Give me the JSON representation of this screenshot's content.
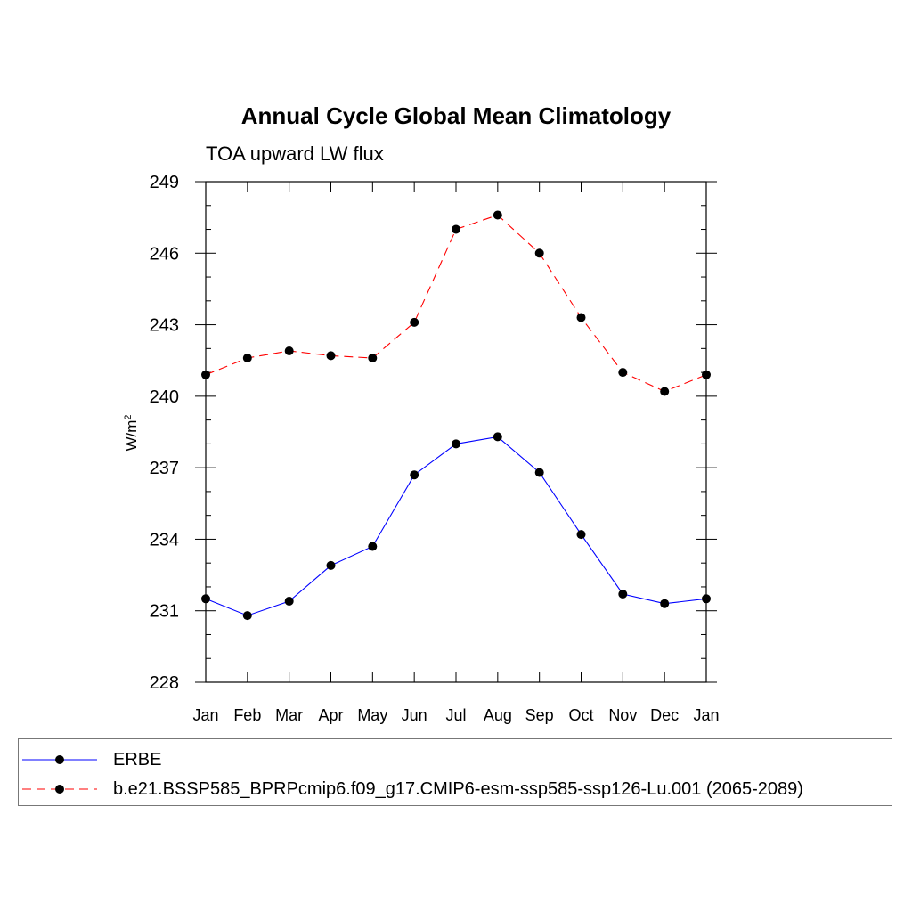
{
  "chart_data": {
    "type": "line",
    "title": "Annual Cycle Global Mean Climatology",
    "subtitle": "TOA upward LW flux",
    "ylabel": "W/m",
    "ylabel_superscript": "2",
    "ylim": [
      228,
      249
    ],
    "yticks": [
      228,
      231,
      234,
      237,
      240,
      243,
      246,
      249
    ],
    "categories": [
      "Jan",
      "Feb",
      "Mar",
      "Apr",
      "May",
      "Jun",
      "Jul",
      "Aug",
      "Sep",
      "Oct",
      "Nov",
      "Dec",
      "Jan"
    ],
    "series": [
      {
        "name": "ERBE",
        "color": "#0000ff",
        "dash": "solid",
        "values": [
          231.5,
          230.8,
          231.4,
          232.9,
          233.7,
          236.7,
          238.0,
          238.3,
          236.8,
          234.2,
          231.7,
          231.3,
          231.5
        ]
      },
      {
        "name": "b.e21.BSSP585_BPRPcmip6.f09_g17.CMIP6-esm-ssp585-ssp126-Lu.001 (2065-2089)",
        "color": "#ff0000",
        "dash": "dashed",
        "values": [
          240.9,
          241.6,
          241.9,
          241.7,
          241.6,
          243.1,
          247.0,
          247.6,
          246.0,
          243.3,
          241.0,
          240.2,
          240.9
        ]
      }
    ],
    "grid": false,
    "legend_position": "bottom"
  }
}
